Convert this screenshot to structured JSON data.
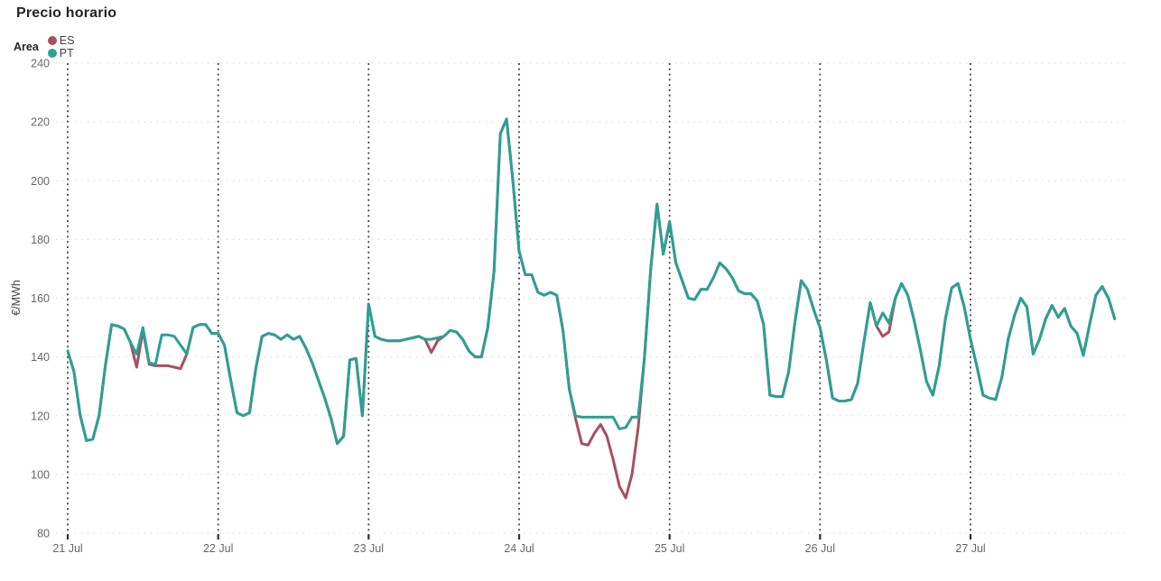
{
  "chart_data": {
    "type": "line",
    "title": "Precio horario",
    "legend_title": "Area",
    "legend_position": "top-left",
    "ylabel": "€/MWh",
    "ylim": [
      80,
      240
    ],
    "yticks": [
      80,
      100,
      120,
      140,
      160,
      180,
      200,
      220,
      240
    ],
    "x_day_labels": [
      "21 Jul",
      "22 Jul",
      "23 Jul",
      "24 Jul",
      "25 Jul",
      "26 Jul",
      "27 Jul"
    ],
    "points_per_day": 24,
    "x_unit": "hour",
    "grid": {
      "vertical_day_lines": "dark-dotted",
      "horizontal_lines": "light-dotted"
    },
    "series": [
      {
        "name": "ES",
        "color": "#A74F5F",
        "values": [
          142,
          135,
          120,
          111.5,
          112,
          120,
          137,
          151,
          150.5,
          149.5,
          145,
          136.5,
          149,
          137.5,
          137,
          137,
          137,
          136.5,
          136,
          141,
          150,
          151,
          151,
          148,
          148,
          144,
          132,
          121,
          120,
          121,
          136,
          147,
          148,
          147.5,
          146,
          147.5,
          146,
          147,
          143,
          138,
          132,
          126,
          119,
          110.5,
          113,
          139,
          139.5,
          120,
          158,
          147,
          146,
          145.5,
          145.5,
          145.5,
          146,
          146.5,
          147,
          146,
          141.5,
          145.5,
          147,
          149,
          148.5,
          146,
          142,
          140,
          140,
          150,
          169,
          216,
          221,
          200,
          176,
          168,
          168,
          162,
          161,
          162,
          161,
          149,
          129,
          119,
          110.5,
          110,
          114,
          117,
          113,
          105,
          96,
          92,
          100,
          116,
          140,
          170,
          192,
          175,
          186,
          172,
          166,
          160,
          159.5,
          163,
          163,
          167,
          172,
          170,
          167,
          162.5,
          161.5,
          161.5,
          159,
          151,
          127,
          126.5,
          126.5,
          135,
          152,
          166,
          163,
          156,
          150,
          139,
          126,
          125,
          125,
          125.5,
          131,
          145,
          158.5,
          150.5,
          147,
          148.5,
          160,
          165,
          161,
          152.5,
          142.5,
          131.5,
          127,
          137,
          153,
          163.5,
          165,
          157,
          146,
          137,
          127,
          126,
          125.5,
          133,
          146,
          154,
          160,
          157,
          141,
          146,
          153,
          157.5,
          153.5,
          156.5,
          150.5,
          148,
          140.5,
          151,
          161,
          164,
          160,
          153
        ]
      },
      {
        "name": "PT",
        "color": "#2CA092",
        "values": [
          142,
          135,
          120,
          111.5,
          112,
          120,
          137,
          151,
          150.5,
          149.5,
          145,
          141,
          150,
          138,
          137.5,
          147.5,
          147.5,
          147,
          144,
          141,
          150,
          151,
          151,
          148,
          148,
          144,
          132,
          121,
          120,
          121,
          136,
          147,
          148,
          147.5,
          146,
          147.5,
          146,
          147,
          143,
          138,
          132,
          126,
          119,
          110.5,
          113,
          139,
          139.5,
          120,
          158,
          147,
          146,
          145.5,
          145.5,
          145.5,
          146,
          146.5,
          147,
          146,
          146,
          146.5,
          147,
          149,
          148.5,
          146,
          142,
          140,
          140,
          150,
          169,
          216,
          221,
          200,
          176,
          168,
          168,
          162,
          161,
          162,
          161,
          149,
          129,
          120,
          119.5,
          119.5,
          119.5,
          119.5,
          119.5,
          119.5,
          115.5,
          116,
          119.5,
          119.5,
          140,
          170,
          192,
          175,
          186,
          172,
          166,
          160,
          159.5,
          163,
          163,
          167,
          172,
          170,
          167,
          162.5,
          161.5,
          161.5,
          159,
          151,
          127,
          126.5,
          126.5,
          135,
          152,
          166,
          163,
          156,
          150,
          139,
          126,
          125,
          125,
          125.5,
          131,
          145,
          158.5,
          150.5,
          155,
          151.5,
          160,
          165,
          161,
          152.5,
          142.5,
          131.5,
          127,
          137,
          153,
          163.5,
          165,
          157,
          146,
          137,
          127,
          126,
          125.5,
          133,
          146,
          154,
          160,
          157,
          141,
          146,
          153,
          157.5,
          153.5,
          156.5,
          150.5,
          148,
          140.5,
          151,
          161,
          164,
          160,
          153
        ]
      }
    ]
  }
}
